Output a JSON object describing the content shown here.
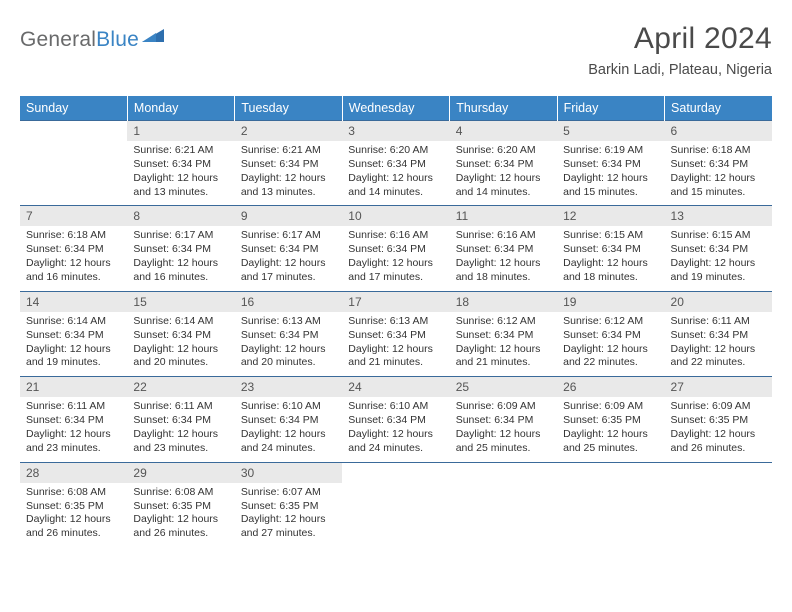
{
  "logo": {
    "part1": "General",
    "part2": "Blue"
  },
  "title": "April 2024",
  "location": "Barkin Ladi, Plateau, Nigeria",
  "colors": {
    "header_bg": "#3a84c4",
    "header_text": "#ffffff",
    "numrow_bg": "#e9e9e9",
    "numrow_border": "#3a6a9a",
    "logo_gray": "#696a6b",
    "logo_blue": "#3a84c4",
    "page_bg": "#ffffff",
    "body_text": "#333333"
  },
  "typography": {
    "title_fontsize": 30,
    "location_fontsize": 14.5,
    "dayhead_fontsize": 12.5,
    "daynum_fontsize": 12,
    "cell_fontsize": 10.5
  },
  "day_names": [
    "Sunday",
    "Monday",
    "Tuesday",
    "Wednesday",
    "Thursday",
    "Friday",
    "Saturday"
  ],
  "weeks": [
    {
      "nums": [
        "",
        "1",
        "2",
        "3",
        "4",
        "5",
        "6"
      ],
      "cells": [
        [],
        [
          "Sunrise: 6:21 AM",
          "Sunset: 6:34 PM",
          "Daylight: 12 hours",
          "and 13 minutes."
        ],
        [
          "Sunrise: 6:21 AM",
          "Sunset: 6:34 PM",
          "Daylight: 12 hours",
          "and 13 minutes."
        ],
        [
          "Sunrise: 6:20 AM",
          "Sunset: 6:34 PM",
          "Daylight: 12 hours",
          "and 14 minutes."
        ],
        [
          "Sunrise: 6:20 AM",
          "Sunset: 6:34 PM",
          "Daylight: 12 hours",
          "and 14 minutes."
        ],
        [
          "Sunrise: 6:19 AM",
          "Sunset: 6:34 PM",
          "Daylight: 12 hours",
          "and 15 minutes."
        ],
        [
          "Sunrise: 6:18 AM",
          "Sunset: 6:34 PM",
          "Daylight: 12 hours",
          "and 15 minutes."
        ]
      ]
    },
    {
      "nums": [
        "7",
        "8",
        "9",
        "10",
        "11",
        "12",
        "13"
      ],
      "cells": [
        [
          "Sunrise: 6:18 AM",
          "Sunset: 6:34 PM",
          "Daylight: 12 hours",
          "and 16 minutes."
        ],
        [
          "Sunrise: 6:17 AM",
          "Sunset: 6:34 PM",
          "Daylight: 12 hours",
          "and 16 minutes."
        ],
        [
          "Sunrise: 6:17 AM",
          "Sunset: 6:34 PM",
          "Daylight: 12 hours",
          "and 17 minutes."
        ],
        [
          "Sunrise: 6:16 AM",
          "Sunset: 6:34 PM",
          "Daylight: 12 hours",
          "and 17 minutes."
        ],
        [
          "Sunrise: 6:16 AM",
          "Sunset: 6:34 PM",
          "Daylight: 12 hours",
          "and 18 minutes."
        ],
        [
          "Sunrise: 6:15 AM",
          "Sunset: 6:34 PM",
          "Daylight: 12 hours",
          "and 18 minutes."
        ],
        [
          "Sunrise: 6:15 AM",
          "Sunset: 6:34 PM",
          "Daylight: 12 hours",
          "and 19 minutes."
        ]
      ]
    },
    {
      "nums": [
        "14",
        "15",
        "16",
        "17",
        "18",
        "19",
        "20"
      ],
      "cells": [
        [
          "Sunrise: 6:14 AM",
          "Sunset: 6:34 PM",
          "Daylight: 12 hours",
          "and 19 minutes."
        ],
        [
          "Sunrise: 6:14 AM",
          "Sunset: 6:34 PM",
          "Daylight: 12 hours",
          "and 20 minutes."
        ],
        [
          "Sunrise: 6:13 AM",
          "Sunset: 6:34 PM",
          "Daylight: 12 hours",
          "and 20 minutes."
        ],
        [
          "Sunrise: 6:13 AM",
          "Sunset: 6:34 PM",
          "Daylight: 12 hours",
          "and 21 minutes."
        ],
        [
          "Sunrise: 6:12 AM",
          "Sunset: 6:34 PM",
          "Daylight: 12 hours",
          "and 21 minutes."
        ],
        [
          "Sunrise: 6:12 AM",
          "Sunset: 6:34 PM",
          "Daylight: 12 hours",
          "and 22 minutes."
        ],
        [
          "Sunrise: 6:11 AM",
          "Sunset: 6:34 PM",
          "Daylight: 12 hours",
          "and 22 minutes."
        ]
      ]
    },
    {
      "nums": [
        "21",
        "22",
        "23",
        "24",
        "25",
        "26",
        "27"
      ],
      "cells": [
        [
          "Sunrise: 6:11 AM",
          "Sunset: 6:34 PM",
          "Daylight: 12 hours",
          "and 23 minutes."
        ],
        [
          "Sunrise: 6:11 AM",
          "Sunset: 6:34 PM",
          "Daylight: 12 hours",
          "and 23 minutes."
        ],
        [
          "Sunrise: 6:10 AM",
          "Sunset: 6:34 PM",
          "Daylight: 12 hours",
          "and 24 minutes."
        ],
        [
          "Sunrise: 6:10 AM",
          "Sunset: 6:34 PM",
          "Daylight: 12 hours",
          "and 24 minutes."
        ],
        [
          "Sunrise: 6:09 AM",
          "Sunset: 6:34 PM",
          "Daylight: 12 hours",
          "and 25 minutes."
        ],
        [
          "Sunrise: 6:09 AM",
          "Sunset: 6:35 PM",
          "Daylight: 12 hours",
          "and 25 minutes."
        ],
        [
          "Sunrise: 6:09 AM",
          "Sunset: 6:35 PM",
          "Daylight: 12 hours",
          "and 26 minutes."
        ]
      ]
    },
    {
      "nums": [
        "28",
        "29",
        "30",
        "",
        "",
        "",
        ""
      ],
      "cells": [
        [
          "Sunrise: 6:08 AM",
          "Sunset: 6:35 PM",
          "Daylight: 12 hours",
          "and 26 minutes."
        ],
        [
          "Sunrise: 6:08 AM",
          "Sunset: 6:35 PM",
          "Daylight: 12 hours",
          "and 26 minutes."
        ],
        [
          "Sunrise: 6:07 AM",
          "Sunset: 6:35 PM",
          "Daylight: 12 hours",
          "and 27 minutes."
        ],
        [],
        [],
        [],
        []
      ]
    }
  ]
}
